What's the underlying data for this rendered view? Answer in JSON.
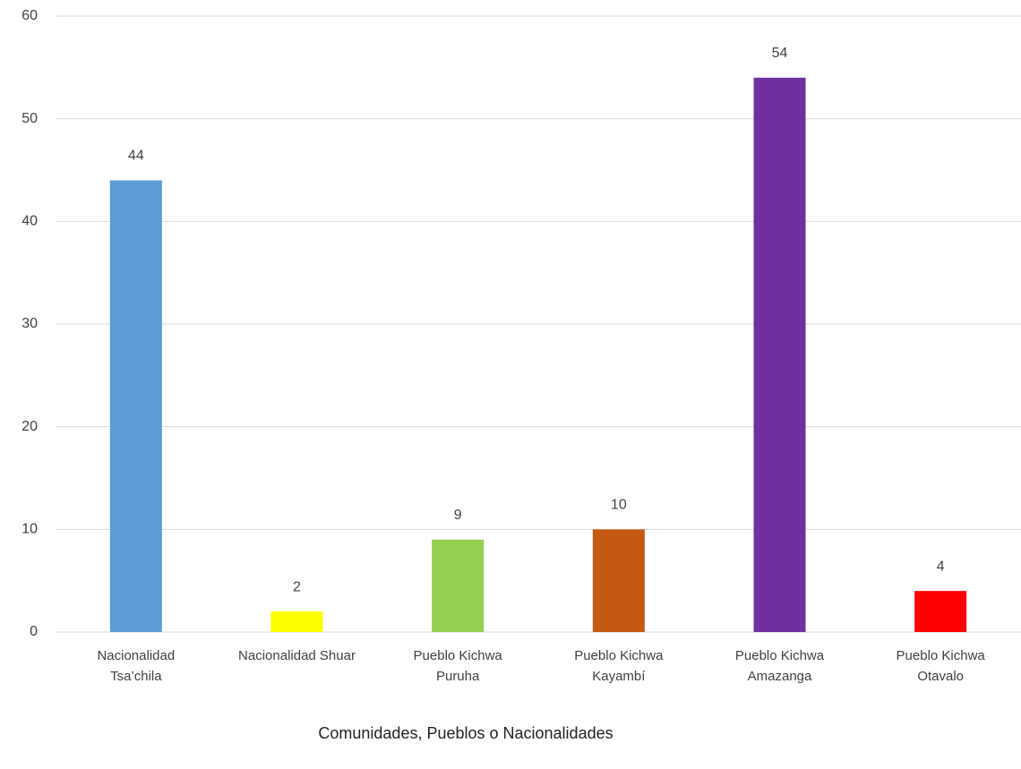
{
  "chart_data": {
    "type": "bar",
    "x_label": "Comunidades, Pueblos o Nacionalidades",
    "categories": [
      [
        "Nacionalidad",
        "Tsa’chila"
      ],
      [
        "Nacionalidad Shuar"
      ],
      [
        "Pueblo Kichwa",
        "Puruha"
      ],
      [
        "Pueblo Kichwa",
        "Kayambí"
      ],
      [
        "Pueblo Kichwa",
        "Amazanga"
      ],
      [
        "Pueblo Kichwa",
        "Otavalo"
      ]
    ],
    "values": [
      44,
      2,
      9,
      10,
      54,
      4
    ],
    "colors": [
      "#5b9bd5",
      "#ffff00",
      "#92d050",
      "#c55a11",
      "#7030a0",
      "#ff0000"
    ],
    "ylim": [
      0,
      60
    ],
    "yticks": [
      0,
      10,
      20,
      30,
      40,
      50,
      60
    ],
    "grid": true
  }
}
